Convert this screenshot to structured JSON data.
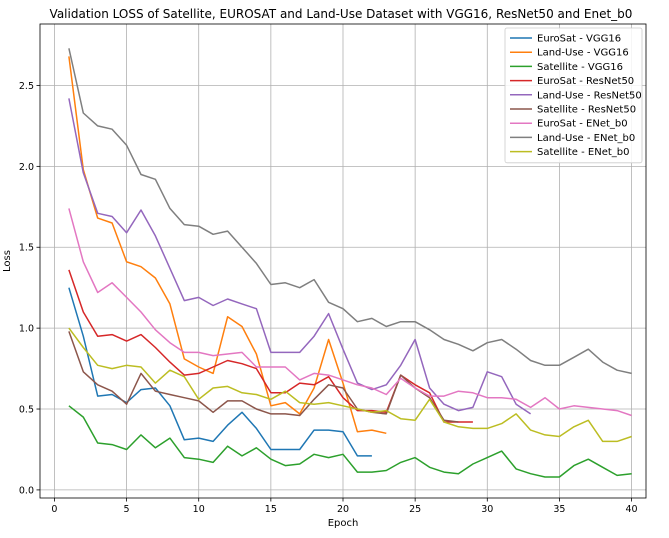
{
  "chart_data": {
    "type": "line",
    "title": "Validation LOSS of Satellite, EUROSAT and Land-Use Dataset with VGG16, ResNet50 and Enet_b0",
    "xlabel": "Epoch",
    "ylabel": "Loss",
    "xlim": [
      -1,
      41
    ],
    "ylim": [
      -0.05,
      2.88
    ],
    "xticks": [
      0,
      5,
      10,
      15,
      20,
      25,
      30,
      35,
      40
    ],
    "yticks": [
      0.0,
      0.5,
      1.0,
      1.5,
      2.0,
      2.5
    ],
    "xtick_labels": [
      "0",
      "5",
      "10",
      "15",
      "20",
      "25",
      "30",
      "35",
      "40"
    ],
    "ytick_labels": [
      "0.0",
      "0.5",
      "1.0",
      "1.5",
      "2.0",
      "2.5"
    ],
    "grid": true,
    "legend_position": "top-right",
    "series": [
      {
        "name": "EuroSat - VGG16",
        "color": "#1f77b4",
        "values": [
          1.25,
          0.95,
          0.58,
          0.59,
          0.54,
          0.62,
          0.63,
          0.52,
          0.31,
          0.32,
          0.3,
          0.4,
          0.48,
          0.38,
          0.25,
          0.25,
          0.25,
          0.37,
          0.37,
          0.36,
          0.21,
          0.21
        ]
      },
      {
        "name": "Land-Use - VGG16",
        "color": "#ff7f0e",
        "values": [
          2.68,
          1.98,
          1.68,
          1.65,
          1.41,
          1.38,
          1.31,
          1.15,
          0.81,
          0.76,
          0.72,
          1.07,
          1.01,
          0.84,
          0.52,
          0.54,
          0.47,
          0.63,
          0.93,
          0.66,
          0.36,
          0.37,
          0.35
        ]
      },
      {
        "name": "Satellite - VGG16",
        "color": "#2ca02c",
        "values": [
          0.52,
          0.45,
          0.29,
          0.28,
          0.25,
          0.34,
          0.26,
          0.32,
          0.2,
          0.19,
          0.17,
          0.27,
          0.21,
          0.26,
          0.19,
          0.15,
          0.16,
          0.22,
          0.2,
          0.22,
          0.11,
          0.11,
          0.12,
          0.17,
          0.2,
          0.14,
          0.11,
          0.1,
          0.16,
          0.2,
          0.24,
          0.13,
          0.1,
          0.08,
          0.08,
          0.15,
          0.19,
          0.14,
          0.09,
          0.1
        ]
      },
      {
        "name": "EuroSat - ResNet50",
        "color": "#d62728",
        "values": [
          1.36,
          1.1,
          0.95,
          0.96,
          0.92,
          0.96,
          0.88,
          0.79,
          0.71,
          0.72,
          0.76,
          0.8,
          0.78,
          0.75,
          0.6,
          0.6,
          0.66,
          0.65,
          0.7,
          0.57,
          0.49,
          0.49,
          0.48,
          0.71,
          0.65,
          0.6,
          0.42,
          0.42,
          0.42
        ]
      },
      {
        "name": "Land-Use - ResNet50",
        "color": "#9467bd",
        "values": [
          2.42,
          1.96,
          1.71,
          1.69,
          1.59,
          1.73,
          1.57,
          1.37,
          1.17,
          1.19,
          1.14,
          1.18,
          1.15,
          1.12,
          0.85,
          0.85,
          0.85,
          0.95,
          1.09,
          0.87,
          0.66,
          0.62,
          0.65,
          0.77,
          0.93,
          0.63,
          0.53,
          0.49,
          0.51,
          0.73,
          0.7,
          0.53,
          0.47
        ]
      },
      {
        "name": "Satellite - ResNet50",
        "color": "#8c564b",
        "values": [
          0.98,
          0.73,
          0.65,
          0.61,
          0.53,
          0.72,
          0.61,
          0.59,
          0.57,
          0.55,
          0.48,
          0.55,
          0.55,
          0.5,
          0.47,
          0.47,
          0.46,
          0.56,
          0.65,
          0.63,
          0.5,
          0.48,
          0.47,
          0.71,
          0.63,
          0.57,
          0.43,
          0.42
        ]
      },
      {
        "name": "EuroSat - ENet_b0",
        "color": "#e377c2",
        "values": [
          1.74,
          1.41,
          1.22,
          1.28,
          1.19,
          1.1,
          0.99,
          0.91,
          0.85,
          0.85,
          0.83,
          0.84,
          0.85,
          0.76,
          0.76,
          0.76,
          0.68,
          0.72,
          0.71,
          0.68,
          0.65,
          0.63,
          0.59,
          0.69,
          0.63,
          0.58,
          0.58,
          0.61,
          0.6,
          0.57,
          0.57,
          0.56,
          0.51,
          0.57,
          0.5,
          0.52,
          0.51,
          0.5,
          0.49,
          0.46
        ]
      },
      {
        "name": "Land-Use - ENet_b0",
        "color": "#7f7f7f",
        "values": [
          2.73,
          2.33,
          2.25,
          2.23,
          2.13,
          1.95,
          1.92,
          1.74,
          1.64,
          1.63,
          1.58,
          1.6,
          1.5,
          1.4,
          1.27,
          1.28,
          1.25,
          1.3,
          1.16,
          1.12,
          1.04,
          1.06,
          1.01,
          1.04,
          1.04,
          0.99,
          0.93,
          0.9,
          0.86,
          0.91,
          0.93,
          0.87,
          0.8,
          0.77,
          0.77,
          0.82,
          0.87,
          0.79,
          0.74,
          0.72
        ]
      },
      {
        "name": "Satellite - ENet_b0",
        "color": "#bcbd22",
        "values": [
          1.0,
          0.88,
          0.77,
          0.75,
          0.77,
          0.76,
          0.66,
          0.74,
          0.7,
          0.56,
          0.63,
          0.64,
          0.6,
          0.59,
          0.56,
          0.61,
          0.54,
          0.53,
          0.54,
          0.52,
          0.5,
          0.48,
          0.49,
          0.44,
          0.43,
          0.56,
          0.42,
          0.39,
          0.38,
          0.38,
          0.41,
          0.47,
          0.37,
          0.34,
          0.33,
          0.39,
          0.43,
          0.3,
          0.3,
          0.33
        ]
      }
    ]
  }
}
